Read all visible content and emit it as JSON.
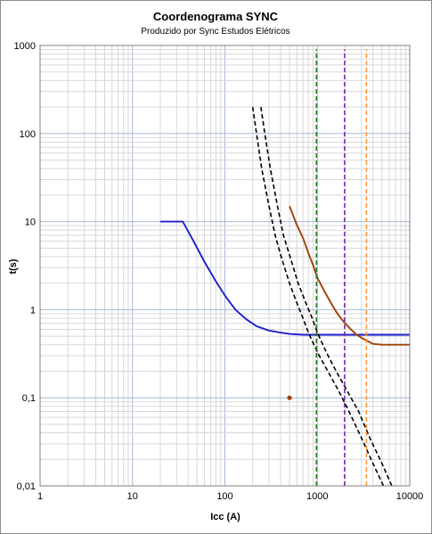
{
  "chart_data": {
    "type": "line",
    "title": "Coordenograma SYNC",
    "subtitle": "Produzido por Sync Estudos Elétricos",
    "xlabel": "Icc (A)",
    "ylabel": "t(s)",
    "x_scale": "log",
    "y_scale": "log",
    "xlim": [
      1,
      10000
    ],
    "ylim": [
      0.01,
      1000
    ],
    "x_ticks": [
      "1",
      "10",
      "100",
      "1000",
      "10000"
    ],
    "y_ticks": [
      "0,01",
      "0,1",
      "1",
      "10",
      "100",
      "1000"
    ],
    "grid": true,
    "legend": "none",
    "series": [
      {
        "color": "#1f1fcf",
        "style": "solid",
        "x": [
          20,
          35,
          45,
          60,
          80,
          100,
          130,
          170,
          220,
          300,
          400,
          500,
          700,
          1000,
          2000,
          5000,
          10000
        ],
        "y": [
          10,
          10,
          6.2,
          3.5,
          2.1,
          1.45,
          1.0,
          0.78,
          0.65,
          0.58,
          0.55,
          0.53,
          0.52,
          0.52,
          0.52,
          0.52,
          0.52
        ]
      },
      {
        "color": "#a0400a",
        "style": "solid",
        "x": [
          500,
          600,
          700,
          800,
          900,
          1000,
          1200,
          1400,
          1600,
          1800,
          2000,
          2300,
          2600,
          3000,
          3500,
          4000,
          5000,
          7000,
          10000
        ],
        "y": [
          15,
          9.2,
          6.5,
          4.4,
          3.2,
          2.3,
          1.6,
          1.2,
          0.95,
          0.8,
          0.7,
          0.6,
          0.53,
          0.48,
          0.44,
          0.41,
          0.4,
          0.4,
          0.4
        ]
      },
      {
        "color": "#000000",
        "style": "dashed",
        "x": [
          200,
          220,
          250,
          300,
          350,
          400,
          500,
          600,
          700,
          800,
          1000,
          1300,
          1700,
          2200,
          3000,
          4000,
          5200
        ],
        "y": [
          200,
          100,
          40,
          15,
          7,
          4.2,
          2.0,
          1.2,
          0.8,
          0.55,
          0.33,
          0.2,
          0.12,
          0.07,
          0.035,
          0.018,
          0.01
        ]
      },
      {
        "color": "#000000",
        "style": "dashed",
        "x": [
          245,
          270,
          310,
          370,
          430,
          500,
          620,
          750,
          880,
          1000,
          1250,
          1600,
          2100,
          2800,
          3700,
          5000,
          6400
        ],
        "y": [
          200,
          100,
          40,
          15,
          7,
          4.2,
          2.0,
          1.2,
          0.8,
          0.55,
          0.33,
          0.2,
          0.12,
          0.07,
          0.035,
          0.018,
          0.01
        ]
      },
      {
        "color": "#1a7a1a",
        "style": "dashed",
        "x": [
          980,
          980
        ],
        "y": [
          0.01,
          900
        ]
      },
      {
        "color": "#7b2fb0",
        "style": "dashed",
        "x": [
          1970,
          1970
        ],
        "y": [
          0.01,
          900
        ]
      },
      {
        "color": "#ff9933",
        "style": "dashed",
        "x": [
          3400,
          3400
        ],
        "y": [
          0.01,
          900
        ]
      }
    ],
    "points": [
      {
        "x": 500,
        "y": 0.1,
        "color": "#a0400a"
      }
    ]
  }
}
